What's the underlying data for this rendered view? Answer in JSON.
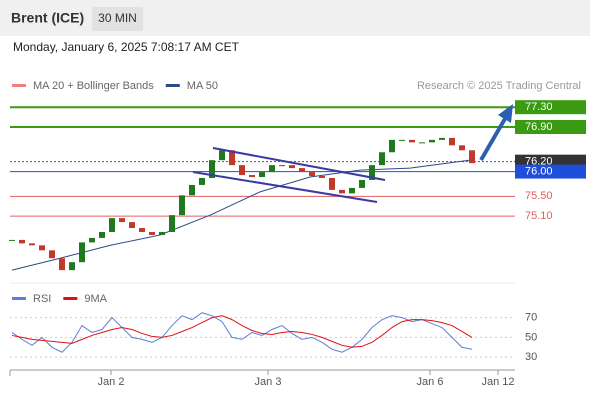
{
  "header": {
    "symbol": "Brent (ICE)",
    "interval": "30 MIN",
    "timestamp": "Monday, January 6, 2025 7:08:17 AM CET"
  },
  "chart_data": {
    "type": "candlestick",
    "legend": [
      {
        "name": "MA 20 + Bollinger Bands",
        "color": "#f08080"
      },
      {
        "name": "MA 50",
        "color": "#2c4a8a"
      }
    ],
    "credit": "Research © 2025 Trading Central",
    "close": [
      74.62,
      74.55,
      74.51,
      74.41,
      74.25,
      74.01,
      74.17,
      74.57,
      74.66,
      74.78,
      75.06,
      74.98,
      74.86,
      74.78,
      74.72,
      74.78,
      75.12,
      75.52,
      75.73,
      75.87,
      76.23,
      76.43,
      76.13,
      75.93,
      75.89,
      75.99,
      76.13,
      76.13,
      76.07,
      75.99,
      75.91,
      75.87,
      75.63,
      75.56,
      75.67,
      75.83,
      76.13,
      76.39,
      76.64,
      76.64,
      76.59,
      76.59,
      76.64,
      76.68,
      76.53,
      76.43,
      76.17
    ],
    "up_color": "#1f7a1f",
    "down_color": "#c0392b",
    "ma50": {
      "x": [
        0,
        4.8,
        9.8,
        14.8,
        19.8,
        24.8,
        29.8,
        34.8,
        39.8,
        45.8
      ],
      "values": [
        74.01,
        74.25,
        74.51,
        74.72,
        75.12,
        75.59,
        75.89,
        76.03,
        76.07,
        76.23
      ],
      "color": "#2c4a8a"
    },
    "levels": [
      {
        "value": 77.3,
        "label": "77.30",
        "color": "#3a9a12",
        "style": "solid-box"
      },
      {
        "value": 76.9,
        "label": "76.90",
        "color": "#3a9a12",
        "style": "solid-box"
      },
      {
        "value": 76.2,
        "label": "76.20",
        "color": "#333333",
        "style": "dotted-box"
      },
      {
        "value": 76.0,
        "label": "76.00",
        "color": "#1f4fd8",
        "style": "solid-box"
      },
      {
        "value": 75.5,
        "label": "75.50",
        "color": "#e06060",
        "style": "text"
      },
      {
        "value": 75.1,
        "label": "75.10",
        "color": "#e06060",
        "style": "text"
      }
    ],
    "xlim": [
      -0.2,
      50.3
    ],
    "ylim": [
      73.75,
      77.95
    ],
    "xticks": [
      {
        "value": 9.9,
        "label": "Jan 2"
      },
      {
        "value": 25.6,
        "label": "Jan 3"
      },
      {
        "value": 41.8,
        "label": "Jan 6"
      },
      {
        "value": 48.6,
        "label": "Jan 12"
      }
    ],
    "rsi": {
      "ylim": [
        17,
        98
      ],
      "yticks": [
        70,
        50,
        30
      ],
      "series": [
        {
          "name": "RSI",
          "color": "#5b7fd6",
          "values": [
            55,
            48,
            42,
            50,
            40,
            35,
            45,
            62,
            55,
            58,
            70,
            60,
            50,
            48,
            45,
            50,
            62,
            72,
            68,
            75,
            72,
            66,
            50,
            48,
            55,
            52,
            58,
            62,
            54,
            48,
            50,
            45,
            38,
            35,
            40,
            48,
            60,
            68,
            72,
            70,
            66,
            68,
            64,
            60,
            50,
            40,
            38
          ]
        },
        {
          "name": "9MA",
          "color": "#e01010",
          "values": [
            52,
            50,
            48,
            47,
            46,
            45,
            44,
            48,
            52,
            55,
            58,
            60,
            58,
            54,
            51,
            50,
            52,
            56,
            60,
            65,
            70,
            72,
            68,
            62,
            57,
            54,
            53,
            55,
            56,
            55,
            53,
            50,
            46,
            42,
            40,
            41,
            45,
            52,
            60,
            66,
            68,
            68,
            67,
            65,
            62,
            56,
            50
          ]
        }
      ]
    }
  }
}
